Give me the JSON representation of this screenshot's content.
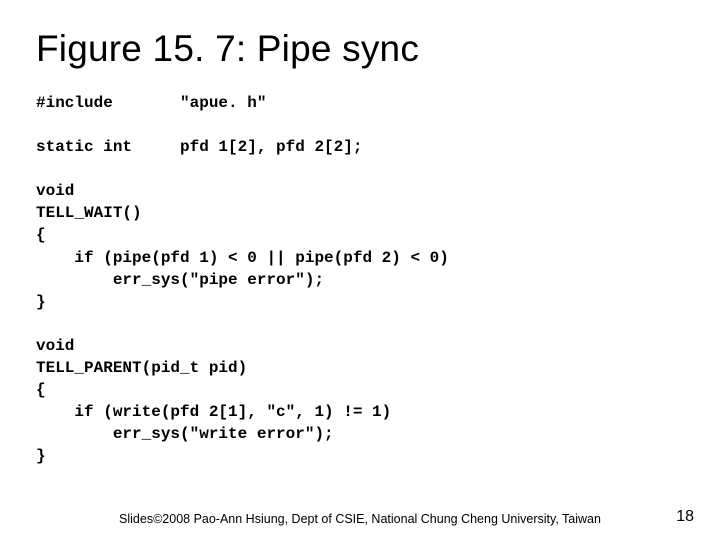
{
  "slide": {
    "title": "Figure 15. 7: Pipe sync",
    "code": "#include       \"apue. h\"\n\nstatic int     pfd 1[2], pfd 2[2];\n\nvoid\nTELL_WAIT()\n{\n    if (pipe(pfd 1) < 0 || pipe(pfd 2) < 0)\n        err_sys(\"pipe error\");\n}\n\nvoid\nTELL_PARENT(pid_t pid)\n{\n    if (write(pfd 2[1], \"c\", 1) != 1)\n        err_sys(\"write error\");\n}",
    "footer": "Slides©2008 Pao-Ann Hsiung, Dept of CSIE, National Chung Cheng University, Taiwan",
    "page_number": "18"
  },
  "style": {
    "title_fontsize": 37,
    "title_color": "#000000",
    "code_font": "Courier New",
    "code_fontsize": 16,
    "code_fontweight": "bold",
    "code_color": "#000000",
    "footer_fontsize": 12.5,
    "footer_color": "#000000",
    "pagenum_fontsize": 16,
    "background_color": "#ffffff",
    "slide_width": 720,
    "slide_height": 540
  }
}
